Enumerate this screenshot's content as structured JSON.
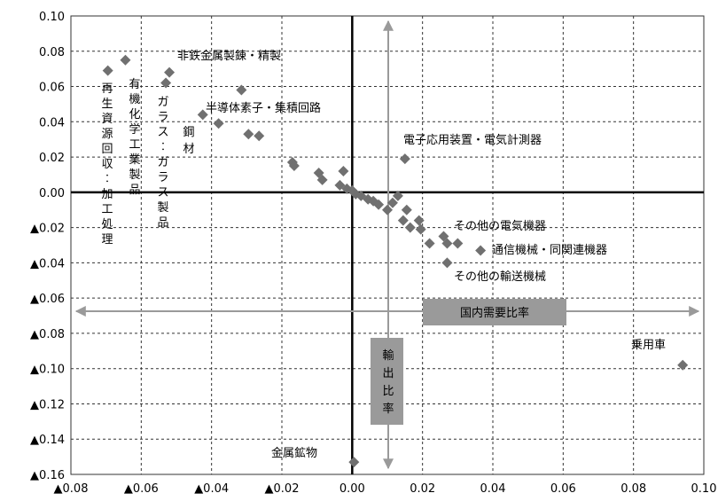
{
  "chart_data": {
    "type": "scatter",
    "xlim": [
      -0.08,
      0.1
    ],
    "ylim": [
      -0.16,
      0.1
    ],
    "x_ticks": [
      {
        "v": -0.08,
        "label": "▲0.08"
      },
      {
        "v": -0.06,
        "label": "▲0.06"
      },
      {
        "v": -0.04,
        "label": "▲0.04"
      },
      {
        "v": -0.02,
        "label": "▲0.02"
      },
      {
        "v": 0.0,
        "label": "0.00"
      },
      {
        "v": 0.02,
        "label": "0.02"
      },
      {
        "v": 0.04,
        "label": "0.04"
      },
      {
        "v": 0.06,
        "label": "0.06"
      },
      {
        "v": 0.08,
        "label": "0.08"
      },
      {
        "v": 0.1,
        "label": "0.10"
      }
    ],
    "y_ticks": [
      {
        "v": 0.1,
        "label": "0.10"
      },
      {
        "v": 0.08,
        "label": "0.08"
      },
      {
        "v": 0.06,
        "label": "0.06"
      },
      {
        "v": 0.04,
        "label": "0.04"
      },
      {
        "v": 0.02,
        "label": "0.02"
      },
      {
        "v": 0.0,
        "label": "0.00"
      },
      {
        "v": -0.02,
        "label": "▲0.02"
      },
      {
        "v": -0.04,
        "label": "▲0.04"
      },
      {
        "v": -0.06,
        "label": "▲0.06"
      },
      {
        "v": -0.08,
        "label": "▲0.08"
      },
      {
        "v": -0.1,
        "label": "▲0.10"
      },
      {
        "v": -0.12,
        "label": "▲0.12"
      },
      {
        "v": -0.14,
        "label": "▲0.14"
      },
      {
        "v": -0.16,
        "label": "▲0.16"
      }
    ],
    "grid": "dashed",
    "marker": "diamond",
    "marker_color": "#707070",
    "axis_color": "#9a9a9a",
    "x_axis_label": "国内需要比率",
    "y_axis_label": "輸出比率",
    "points": [
      {
        "x": -0.0695,
        "y": 0.069,
        "label": "再生資源回収・加工処理"
      },
      {
        "x": -0.0645,
        "y": 0.075,
        "label": "有機化学工業製品"
      },
      {
        "x": -0.053,
        "y": 0.062,
        "label": "ガラス・ガラス製品"
      },
      {
        "x": -0.052,
        "y": 0.068,
        "label": "非鉄金属製錬・精製"
      },
      {
        "x": -0.0425,
        "y": 0.044,
        "label": "鋼材"
      },
      {
        "x": -0.038,
        "y": 0.039
      },
      {
        "x": -0.0315,
        "y": 0.058,
        "label": "半導体素子・集積回路"
      },
      {
        "x": -0.0295,
        "y": 0.033
      },
      {
        "x": -0.0265,
        "y": 0.032
      },
      {
        "x": -0.017,
        "y": 0.017
      },
      {
        "x": -0.0165,
        "y": 0.015
      },
      {
        "x": -0.0095,
        "y": 0.011
      },
      {
        "x": -0.0085,
        "y": 0.007
      },
      {
        "x": -0.0035,
        "y": 0.004
      },
      {
        "x": -0.0025,
        "y": 0.012
      },
      {
        "x": -0.0015,
        "y": 0.002
      },
      {
        "x": 0.0,
        "y": 0.001
      },
      {
        "x": 0.001,
        "y": -0.001
      },
      {
        "x": 0.0025,
        "y": -0.002
      },
      {
        "x": 0.0045,
        "y": -0.004
      },
      {
        "x": 0.006,
        "y": -0.005
      },
      {
        "x": 0.0075,
        "y": -0.007
      },
      {
        "x": 0.01,
        "y": -0.01
      },
      {
        "x": 0.0115,
        "y": -0.006
      },
      {
        "x": 0.013,
        "y": -0.002
      },
      {
        "x": 0.015,
        "y": 0.019,
        "label": "電子応用装置・電気計測器"
      },
      {
        "x": 0.0145,
        "y": -0.016
      },
      {
        "x": 0.0155,
        "y": -0.01
      },
      {
        "x": 0.0165,
        "y": -0.02
      },
      {
        "x": 0.019,
        "y": -0.016
      },
      {
        "x": 0.0195,
        "y": -0.021
      },
      {
        "x": 0.022,
        "y": -0.029
      },
      {
        "x": 0.026,
        "y": -0.025
      },
      {
        "x": 0.027,
        "y": -0.029,
        "label": "その他の電気機器"
      },
      {
        "x": 0.027,
        "y": -0.04,
        "label": "その他の輸送機械"
      },
      {
        "x": 0.03,
        "y": -0.029
      },
      {
        "x": 0.0365,
        "y": -0.033,
        "label": "通信機械・同関連機器"
      },
      {
        "x": 0.0005,
        "y": -0.153,
        "label": "金属鉱物"
      },
      {
        "x": 0.094,
        "y": -0.098,
        "label": "乗用車"
      }
    ]
  }
}
